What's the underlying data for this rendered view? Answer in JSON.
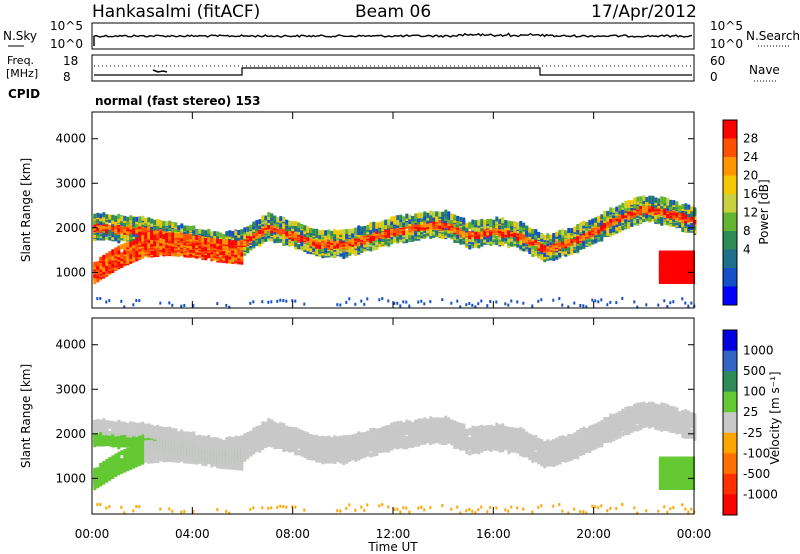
{
  "header": {
    "station": "Hankasalmi (fitACF)",
    "beam": "Beam 06",
    "date": "17/Apr/2012"
  },
  "top_panels": {
    "nsky_label": "N.Sky",
    "nsky_ticks": [
      "10^5",
      "10^0"
    ],
    "nsearch_label": "N.Search",
    "nsearch_ticks": [
      "10^5",
      "10^0"
    ],
    "freq_label_1": "Freq.",
    "freq_label_2": "[MHz]",
    "freq_ticks": [
      "18",
      "8"
    ],
    "nave_label": "Nave",
    "nave_ticks": [
      "60",
      "0"
    ],
    "cpid_label": "CPID",
    "cpid_text": "normal (fast stereo) 153"
  },
  "power_colorbar": {
    "label": "Power [dB]",
    "ticks": [
      "28",
      "24",
      "20",
      "16",
      "12",
      "8",
      "4"
    ],
    "colors": [
      "#ff0000",
      "#ff5000",
      "#ff9600",
      "#f5c800",
      "#c8d23c",
      "#64b432",
      "#2e8b57",
      "#1e6e8c",
      "#1450c8",
      "#0000ff"
    ]
  },
  "velocity_colorbar": {
    "label": "Velocity [m s⁻¹]",
    "ticks": [
      "1000",
      "500",
      "100",
      "25",
      "-25",
      "-100",
      "-500",
      "-1000"
    ],
    "colors": [
      "#0000e0",
      "#3264c8",
      "#2e8b57",
      "#64c832",
      "#c8c8c8",
      "#ffa500",
      "#ff7000",
      "#ff3000",
      "#ff0000"
    ]
  },
  "chart_data": [
    {
      "type": "heatmap",
      "panel": "power",
      "ylabel": "Slant Range [km]",
      "xlabel": "Time UT",
      "x_ticks": [
        "00:00",
        "04:00",
        "08:00",
        "12:00",
        "16:00",
        "20:00",
        "00:00"
      ],
      "y_ticks": [
        1000,
        2000,
        3000,
        4000
      ],
      "ylim": [
        200,
        4600
      ],
      "xlim_hours": [
        0,
        24
      ],
      "series": [
        {
          "name": "main band",
          "x": [
            0,
            1,
            2,
            3,
            4,
            5,
            6,
            7,
            8,
            9,
            10,
            11,
            12,
            13,
            14,
            15,
            16,
            17,
            18,
            19,
            20,
            21,
            22,
            23,
            24
          ],
          "y": [
            2100,
            2050,
            2000,
            1900,
            1800,
            1650,
            1750,
            2100,
            1900,
            1700,
            1700,
            1850,
            2000,
            2100,
            2150,
            1900,
            2000,
            1900,
            1600,
            1750,
            2000,
            2300,
            2500,
            2400,
            2200
          ]
        },
        {
          "name": "low band",
          "x": [
            0,
            1,
            2,
            3,
            4,
            5,
            6
          ],
          "y": [
            1050,
            1400,
            1650,
            1700,
            1650,
            1550,
            1500
          ]
        }
      ]
    },
    {
      "type": "heatmap",
      "panel": "velocity",
      "ylabel": "Slant Range [km]",
      "xlabel": "Time UT",
      "x_ticks": [
        "00:00",
        "04:00",
        "08:00",
        "12:00",
        "16:00",
        "20:00",
        "00:00"
      ],
      "y_ticks": [
        1000,
        2000,
        3000,
        4000
      ],
      "ylim": [
        200,
        4600
      ],
      "xlim_hours": [
        0,
        24
      ]
    }
  ]
}
